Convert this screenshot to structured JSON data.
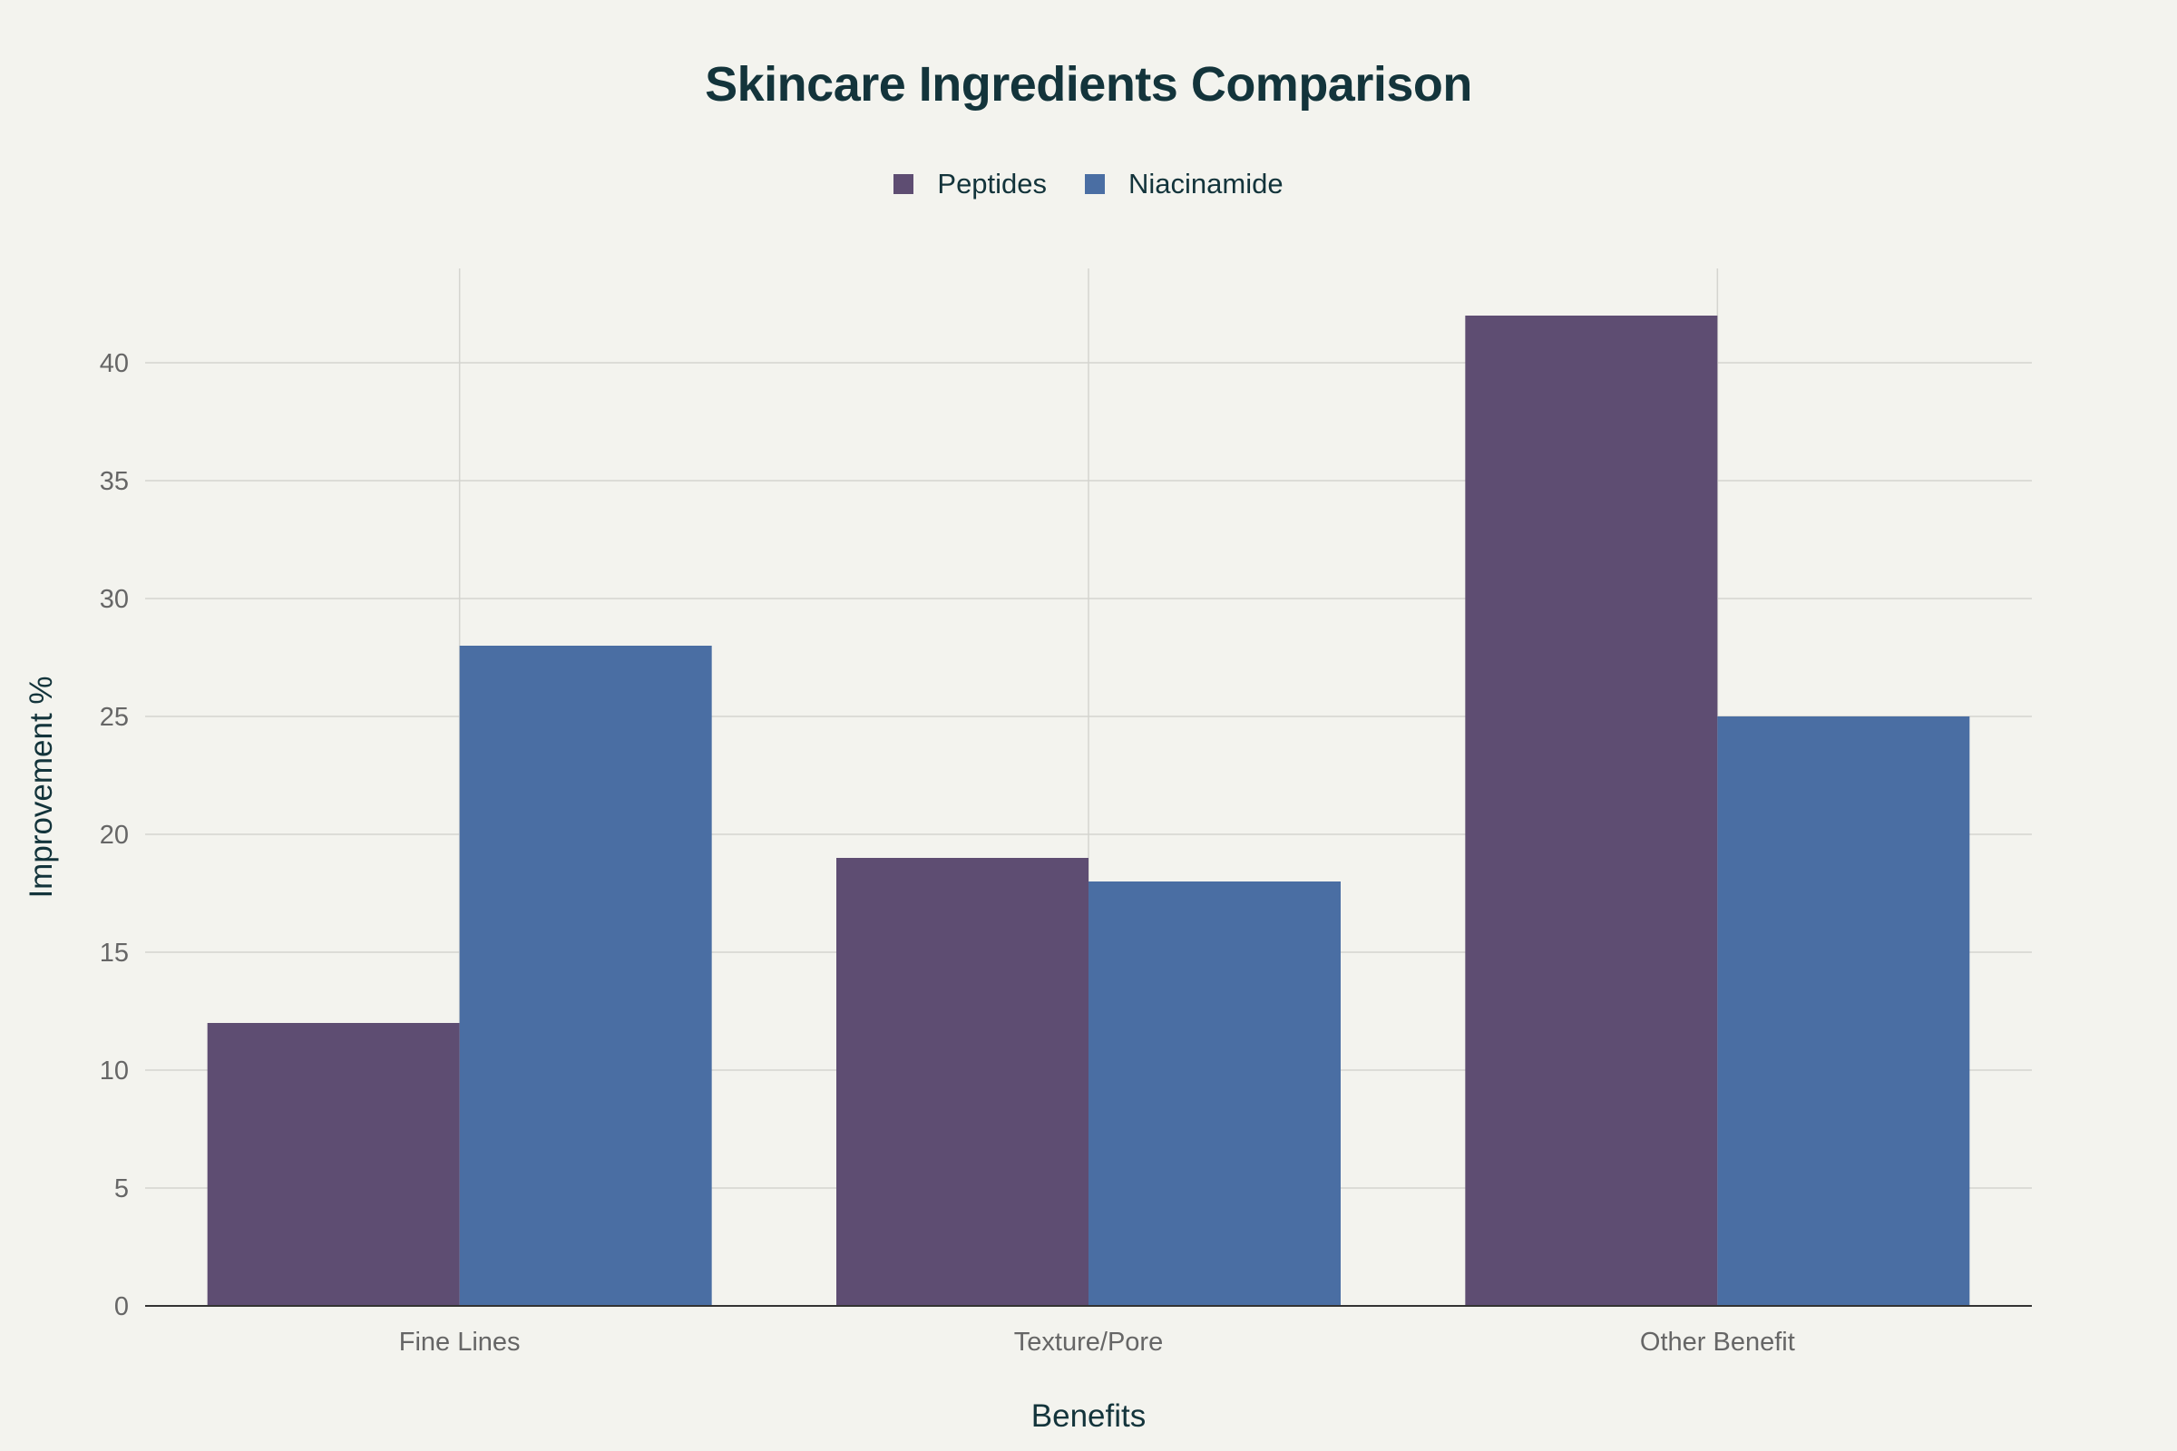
{
  "chart_data": {
    "type": "bar",
    "title": "Skincare Ingredients Comparison",
    "xlabel": "Benefits",
    "ylabel": "Improvement %",
    "categories": [
      "Fine Lines",
      "Texture/Pore",
      "Other Benefit"
    ],
    "series": [
      {
        "name": "Peptides",
        "values": [
          12,
          19,
          42
        ],
        "color": "#5e4d72"
      },
      {
        "name": "Niacinamide",
        "values": [
          28,
          18,
          25
        ],
        "color": "#4a6ea3"
      }
    ],
    "ylim": [
      0,
      44
    ],
    "yticks": [
      0,
      5,
      10,
      15,
      20,
      25,
      30,
      35,
      40
    ],
    "grid": true,
    "legend_position": "top-center"
  }
}
